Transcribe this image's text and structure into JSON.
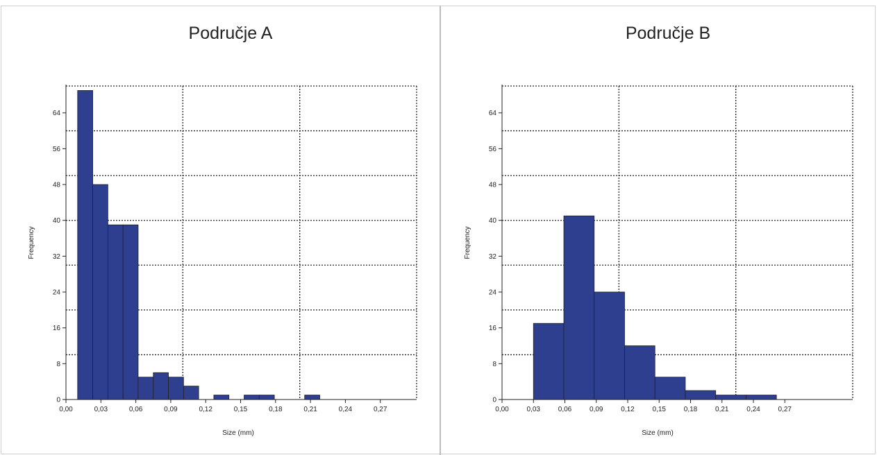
{
  "chart_data": [
    {
      "type": "bar",
      "title": "Područje A",
      "xlabel": "Size (mm)",
      "ylabel": "Frequency",
      "xlim": [
        0,
        0.3
      ],
      "ylim": [
        0,
        70
      ],
      "x_ticks": [
        "0,00",
        "0,03",
        "0,06",
        "0,09",
        "0,12",
        "0,15",
        "0,18",
        "0,21",
        "0,24",
        "0,27"
      ],
      "y_ticks": [
        "0",
        "8",
        "16",
        "24",
        "32",
        "40",
        "48",
        "56",
        "64"
      ],
      "bar_color": "#2e3f8f",
      "bins": [
        {
          "x0": 0.01,
          "x1": 0.023,
          "value": 69
        },
        {
          "x0": 0.023,
          "x1": 0.036,
          "value": 48
        },
        {
          "x0": 0.036,
          "x1": 0.049,
          "value": 39
        },
        {
          "x0": 0.049,
          "x1": 0.062,
          "value": 39
        },
        {
          "x0": 0.062,
          "x1": 0.075,
          "value": 5
        },
        {
          "x0": 0.075,
          "x1": 0.088,
          "value": 6
        },
        {
          "x0": 0.088,
          "x1": 0.101,
          "value": 5
        },
        {
          "x0": 0.101,
          "x1": 0.114,
          "value": 3
        },
        {
          "x0": 0.114,
          "x1": 0.127,
          "value": 0
        },
        {
          "x0": 0.127,
          "x1": 0.14,
          "value": 1
        },
        {
          "x0": 0.14,
          "x1": 0.153,
          "value": 0
        },
        {
          "x0": 0.153,
          "x1": 0.166,
          "value": 1
        },
        {
          "x0": 0.166,
          "x1": 0.179,
          "value": 1
        },
        {
          "x0": 0.179,
          "x1": 0.192,
          "value": 0
        },
        {
          "x0": 0.192,
          "x1": 0.205,
          "value": 0
        },
        {
          "x0": 0.205,
          "x1": 0.218,
          "value": 1
        }
      ],
      "grid": true
    },
    {
      "type": "bar",
      "title": "Područje B",
      "xlabel": "Size (mm)",
      "ylabel": "Frequency",
      "xlim": [
        0,
        0.3
      ],
      "ylim": [
        0,
        70
      ],
      "x_ticks": [
        "0,00",
        "0,03",
        "0,06",
        "0,09",
        "0,12",
        "0,15",
        "0,18",
        "0,21",
        "0,24",
        "0,27"
      ],
      "y_ticks": [
        "0",
        "8",
        "16",
        "24",
        "32",
        "40",
        "48",
        "56",
        "64"
      ],
      "bar_color": "#2e3f8f",
      "bins": [
        {
          "x0": 0.03,
          "x1": 0.059,
          "value": 17
        },
        {
          "x0": 0.059,
          "x1": 0.088,
          "value": 41
        },
        {
          "x0": 0.088,
          "x1": 0.117,
          "value": 24
        },
        {
          "x0": 0.117,
          "x1": 0.146,
          "value": 12
        },
        {
          "x0": 0.146,
          "x1": 0.175,
          "value": 5
        },
        {
          "x0": 0.175,
          "x1": 0.204,
          "value": 2
        },
        {
          "x0": 0.204,
          "x1": 0.233,
          "value": 1
        },
        {
          "x0": 0.233,
          "x1": 0.262,
          "value": 1
        }
      ],
      "grid": true
    }
  ]
}
